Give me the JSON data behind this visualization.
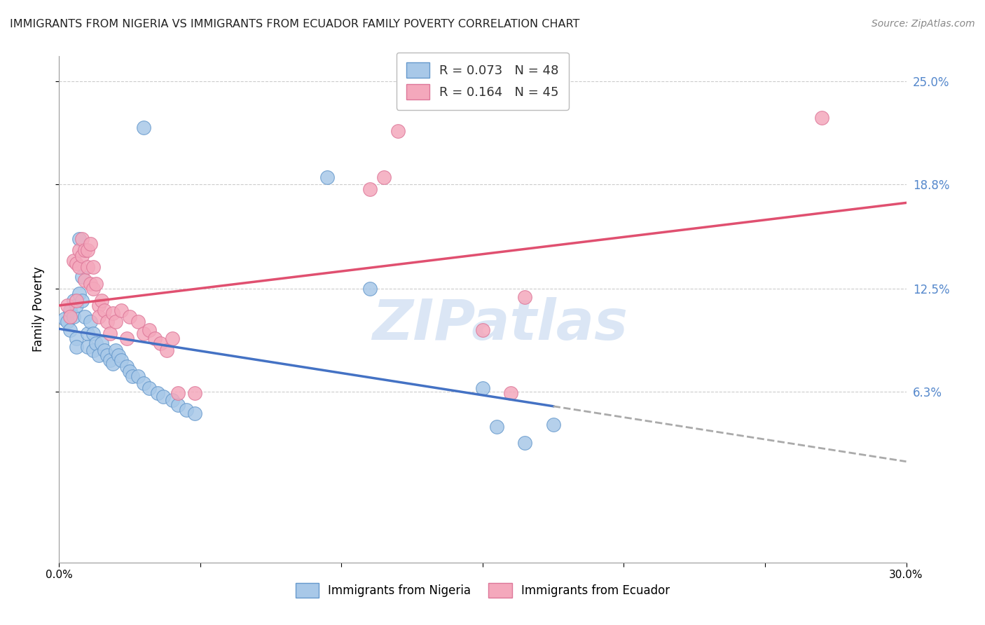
{
  "title": "IMMIGRANTS FROM NIGERIA VS IMMIGRANTS FROM ECUADOR FAMILY POVERTY CORRELATION CHART",
  "source": "Source: ZipAtlas.com",
  "ylabel": "Family Poverty",
  "xlim": [
    0.0,
    0.3
  ],
  "ylim": [
    -0.04,
    0.265
  ],
  "ytick_values": [
    0.063,
    0.125,
    0.188,
    0.25
  ],
  "ytick_labels": [
    "6.3%",
    "12.5%",
    "18.8%",
    "25.0%"
  ],
  "nigeria_points": [
    [
      0.002,
      0.107
    ],
    [
      0.003,
      0.105
    ],
    [
      0.004,
      0.112
    ],
    [
      0.004,
      0.1
    ],
    [
      0.005,
      0.118
    ],
    [
      0.005,
      0.108
    ],
    [
      0.006,
      0.115
    ],
    [
      0.006,
      0.095
    ],
    [
      0.006,
      0.09
    ],
    [
      0.007,
      0.155
    ],
    [
      0.007,
      0.122
    ],
    [
      0.008,
      0.132
    ],
    [
      0.008,
      0.118
    ],
    [
      0.009,
      0.108
    ],
    [
      0.01,
      0.098
    ],
    [
      0.01,
      0.09
    ],
    [
      0.011,
      0.105
    ],
    [
      0.012,
      0.098
    ],
    [
      0.012,
      0.088
    ],
    [
      0.013,
      0.092
    ],
    [
      0.014,
      0.085
    ],
    [
      0.015,
      0.092
    ],
    [
      0.016,
      0.088
    ],
    [
      0.017,
      0.085
    ],
    [
      0.018,
      0.082
    ],
    [
      0.019,
      0.08
    ],
    [
      0.02,
      0.088
    ],
    [
      0.021,
      0.085
    ],
    [
      0.022,
      0.082
    ],
    [
      0.024,
      0.078
    ],
    [
      0.025,
      0.075
    ],
    [
      0.026,
      0.072
    ],
    [
      0.028,
      0.072
    ],
    [
      0.03,
      0.068
    ],
    [
      0.032,
      0.065
    ],
    [
      0.035,
      0.062
    ],
    [
      0.037,
      0.06
    ],
    [
      0.04,
      0.058
    ],
    [
      0.042,
      0.055
    ],
    [
      0.045,
      0.052
    ],
    [
      0.048,
      0.05
    ],
    [
      0.03,
      0.222
    ],
    [
      0.095,
      0.192
    ],
    [
      0.11,
      0.125
    ],
    [
      0.15,
      0.065
    ],
    [
      0.155,
      0.042
    ],
    [
      0.165,
      0.032
    ],
    [
      0.175,
      0.043
    ]
  ],
  "ecuador_points": [
    [
      0.003,
      0.115
    ],
    [
      0.004,
      0.108
    ],
    [
      0.005,
      0.142
    ],
    [
      0.006,
      0.14
    ],
    [
      0.006,
      0.118
    ],
    [
      0.007,
      0.148
    ],
    [
      0.007,
      0.138
    ],
    [
      0.008,
      0.155
    ],
    [
      0.008,
      0.145
    ],
    [
      0.009,
      0.148
    ],
    [
      0.009,
      0.13
    ],
    [
      0.01,
      0.148
    ],
    [
      0.01,
      0.138
    ],
    [
      0.011,
      0.152
    ],
    [
      0.011,
      0.128
    ],
    [
      0.012,
      0.138
    ],
    [
      0.012,
      0.125
    ],
    [
      0.013,
      0.128
    ],
    [
      0.014,
      0.115
    ],
    [
      0.014,
      0.108
    ],
    [
      0.015,
      0.118
    ],
    [
      0.016,
      0.112
    ],
    [
      0.017,
      0.105
    ],
    [
      0.018,
      0.098
    ],
    [
      0.019,
      0.11
    ],
    [
      0.02,
      0.105
    ],
    [
      0.022,
      0.112
    ],
    [
      0.024,
      0.095
    ],
    [
      0.025,
      0.108
    ],
    [
      0.028,
      0.105
    ],
    [
      0.03,
      0.098
    ],
    [
      0.032,
      0.1
    ],
    [
      0.034,
      0.095
    ],
    [
      0.036,
      0.092
    ],
    [
      0.038,
      0.088
    ],
    [
      0.04,
      0.095
    ],
    [
      0.042,
      0.062
    ],
    [
      0.048,
      0.062
    ],
    [
      0.11,
      0.185
    ],
    [
      0.115,
      0.192
    ],
    [
      0.15,
      0.1
    ],
    [
      0.16,
      0.062
    ],
    [
      0.12,
      0.22
    ],
    [
      0.27,
      0.228
    ],
    [
      0.165,
      0.12
    ]
  ],
  "dot_color_nigeria": "#a8c8e8",
  "dot_color_ecuador": "#f4a8bc",
  "dot_edge_nigeria": "#6699cc",
  "dot_edge_ecuador": "#dd7799",
  "line_color_nigeria": "#4472c4",
  "line_color_ecuador": "#e05070",
  "line_color_dashed": "#aaaaaa",
  "legend_entries": [
    {
      "label": "R = 0.073   N = 48",
      "color": "#a8c8e8"
    },
    {
      "label": "R = 0.164   N = 45",
      "color": "#f4a8bc"
    }
  ],
  "legend_bottom": [
    {
      "label": "Immigrants from Nigeria",
      "color": "#a8c8e8"
    },
    {
      "label": "Immigrants from Ecuador",
      "color": "#f4a8bc"
    }
  ],
  "background_color": "#ffffff",
  "grid_color": "#cccccc",
  "watermark_text": "ZIPatlas",
  "watermark_color": "#c8daf0"
}
